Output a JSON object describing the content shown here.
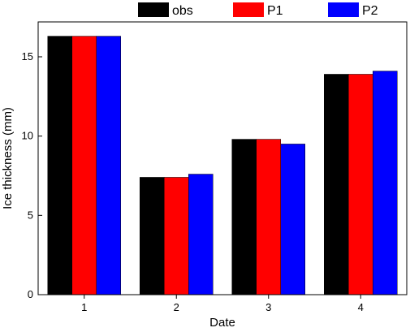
{
  "chart_data": {
    "type": "bar",
    "categories": [
      "1",
      "2",
      "3",
      "4"
    ],
    "series": [
      {
        "name": "obs",
        "color": "#000000",
        "values": [
          16.3,
          7.4,
          9.8,
          13.9
        ]
      },
      {
        "name": "P1",
        "color": "#ff0000",
        "values": [
          16.3,
          7.4,
          9.8,
          13.9
        ]
      },
      {
        "name": "P2",
        "color": "#0000ff",
        "values": [
          16.3,
          7.6,
          9.5,
          14.1
        ]
      }
    ],
    "xlabel": "Date",
    "ylabel": "Ice thickness (mm)",
    "ylim": [
      0,
      17.2
    ],
    "yticks": [
      "0",
      "5",
      "10",
      "15"
    ],
    "grid": false,
    "legend_position": "top"
  }
}
